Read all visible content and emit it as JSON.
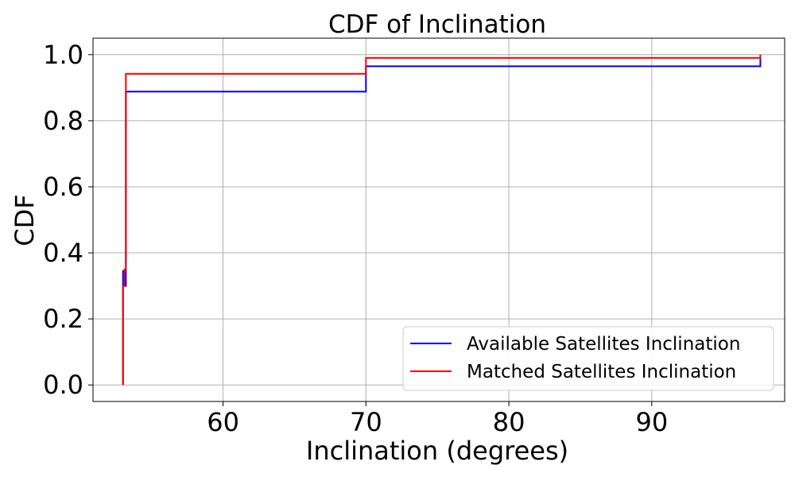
{
  "chart_data": {
    "type": "line",
    "title": "CDF of Inclination",
    "xlabel": "Inclination (degrees)",
    "ylabel": "CDF",
    "xlim": [
      50.9,
      99.3
    ],
    "ylim": [
      -0.05,
      1.05
    ],
    "xticks": [
      60,
      70,
      80,
      90
    ],
    "xtick_labels": [
      "60",
      "70",
      "80",
      "90"
    ],
    "yticks": [
      0.0,
      0.2,
      0.4,
      0.6,
      0.8,
      1.0
    ],
    "ytick_labels": [
      "0.0",
      "0.2",
      "0.4",
      "0.6",
      "0.8",
      "1.0"
    ],
    "grid": true,
    "legend_position": "bottom-right",
    "series": [
      {
        "name": "Available Satellites Inclination",
        "color": "#0000ff",
        "step": true,
        "x": [
          53.0,
          53.0,
          53.1,
          53.2,
          53.2,
          70.0,
          70.0,
          97.6,
          97.6
        ],
        "y": [
          0.0,
          0.345,
          0.3,
          0.52,
          0.888,
          0.888,
          0.965,
          0.965,
          1.0
        ]
      },
      {
        "name": "Matched Satellites Inclination",
        "color": "#ff0000",
        "step": true,
        "x": [
          53.0,
          53.0,
          53.1,
          53.2,
          53.2,
          70.0,
          70.0,
          97.6,
          97.6
        ],
        "y": [
          0.0,
          0.3,
          0.35,
          0.6,
          0.942,
          0.942,
          0.99,
          0.99,
          1.0
        ]
      }
    ]
  }
}
